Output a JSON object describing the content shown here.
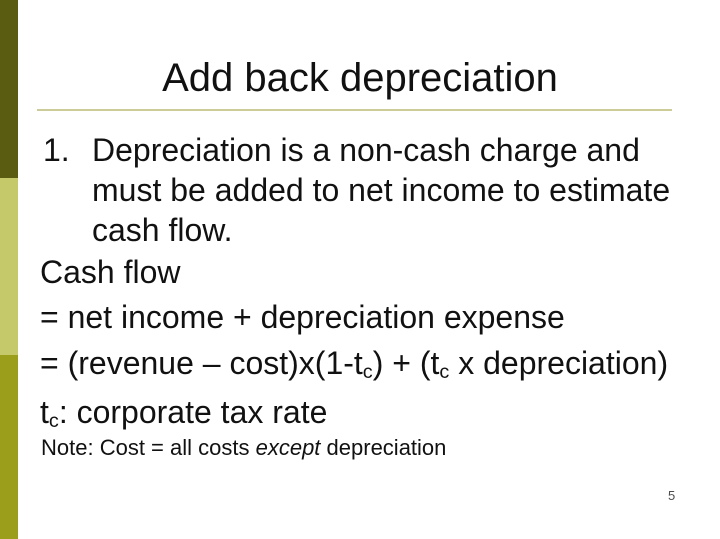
{
  "slide": {
    "title": "Add back depreciation",
    "page_number": "5",
    "colors": {
      "band_top": "#5a5c12",
      "band_middle": "#c6c969",
      "band_bottom": "#9b9e1a",
      "title_rule": "#cbcc97",
      "text": "#111111",
      "background": "#ffffff"
    },
    "item1": {
      "number": "1.",
      "lines": [
        "Depreciation is a non-cash charge and",
        "must be added to net income to estimate",
        "cash flow."
      ]
    },
    "paragraphs": {
      "cash_flow": [
        {
          "text": "Cash flow"
        }
      ],
      "eq_net_income": [
        {
          "text": "= net income + depreciation expense"
        }
      ],
      "eq_revenue": [
        {
          "text": "= (revenue – cost)x(1-t"
        },
        {
          "text": "c",
          "style": "sub"
        },
        {
          "text": ") + (t"
        },
        {
          "text": "c",
          "style": "sub"
        },
        {
          "text": " x depreciation)"
        }
      ],
      "tc_definition": [
        {
          "text": "t"
        },
        {
          "text": "c",
          "style": "sub"
        },
        {
          "text": ": corporate tax rate"
        }
      ],
      "note": [
        {
          "text": "Note: Cost = all costs "
        },
        {
          "text": "except",
          "style": "italic"
        },
        {
          "text": " depreciation"
        }
      ]
    }
  }
}
